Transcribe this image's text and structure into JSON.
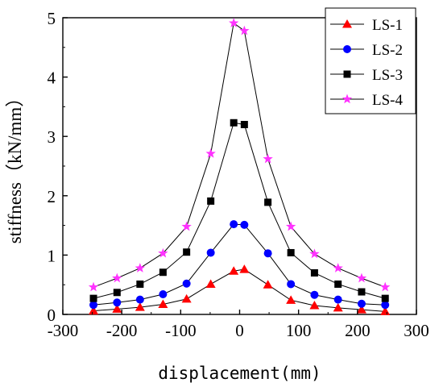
{
  "chart_data": {
    "type": "line",
    "xlabel": "displacement(mm)",
    "ylabel": "stiffness（kN/mm）",
    "xlim": [
      -300,
      300
    ],
    "ylim": [
      0,
      5
    ],
    "x_ticks": [
      "-300",
      "-200",
      "-100",
      "0",
      "100",
      "200",
      "300"
    ],
    "y_ticks": [
      "0",
      "1",
      "2",
      "3",
      "4",
      "5"
    ],
    "grid": false,
    "legend_position": "top-right",
    "series": [
      {
        "name": "LS-1",
        "color": "#ff0000",
        "marker": "triangle",
        "points": [
          [
            -248,
            0.06
          ],
          [
            -208,
            0.09
          ],
          [
            -169,
            0.12
          ],
          [
            -130,
            0.17
          ],
          [
            -90,
            0.26
          ],
          [
            -49,
            0.51
          ],
          [
            -10,
            0.73
          ],
          [
            8,
            0.76
          ],
          [
            48,
            0.5
          ],
          [
            87,
            0.24
          ],
          [
            127,
            0.15
          ],
          [
            167,
            0.11
          ],
          [
            207,
            0.08
          ],
          [
            247,
            0.05
          ]
        ]
      },
      {
        "name": "LS-2",
        "color": "#0000ff",
        "marker": "circle",
        "points": [
          [
            -248,
            0.16
          ],
          [
            -208,
            0.2
          ],
          [
            -169,
            0.25
          ],
          [
            -130,
            0.34
          ],
          [
            -90,
            0.52
          ],
          [
            -49,
            1.04
          ],
          [
            -10,
            1.52
          ],
          [
            8,
            1.51
          ],
          [
            48,
            1.03
          ],
          [
            87,
            0.51
          ],
          [
            127,
            0.33
          ],
          [
            167,
            0.25
          ],
          [
            207,
            0.18
          ],
          [
            247,
            0.16
          ]
        ]
      },
      {
        "name": "LS-3",
        "color": "#000000",
        "marker": "square",
        "points": [
          [
            -248,
            0.27
          ],
          [
            -208,
            0.37
          ],
          [
            -169,
            0.51
          ],
          [
            -130,
            0.71
          ],
          [
            -90,
            1.05
          ],
          [
            -49,
            1.91
          ],
          [
            -10,
            3.23
          ],
          [
            8,
            3.2
          ],
          [
            48,
            1.89
          ],
          [
            87,
            1.04
          ],
          [
            127,
            0.7
          ],
          [
            167,
            0.51
          ],
          [
            207,
            0.38
          ],
          [
            247,
            0.27
          ]
        ]
      },
      {
        "name": "LS-4",
        "color": "#ff33ff",
        "marker": "star",
        "points": [
          [
            -248,
            0.46
          ],
          [
            -208,
            0.61
          ],
          [
            -169,
            0.78
          ],
          [
            -130,
            1.03
          ],
          [
            -90,
            1.48
          ],
          [
            -49,
            2.71
          ],
          [
            -10,
            4.91
          ],
          [
            8,
            4.78
          ],
          [
            48,
            2.62
          ],
          [
            87,
            1.48
          ],
          [
            127,
            1.02
          ],
          [
            167,
            0.78
          ],
          [
            207,
            0.61
          ],
          [
            247,
            0.46
          ]
        ]
      }
    ]
  }
}
